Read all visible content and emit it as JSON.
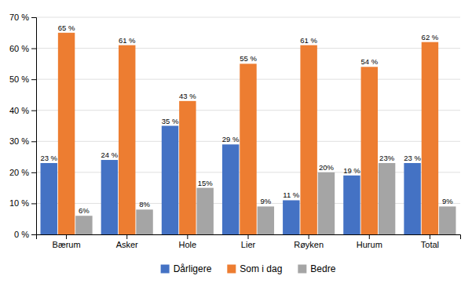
{
  "chart_data": {
    "type": "bar",
    "categories": [
      "Bærum",
      "Asker",
      "Hole",
      "Lier",
      "Røyken",
      "Hurum",
      "Total"
    ],
    "series": [
      {
        "name": "Dårligere",
        "color": "#4472C4",
        "values": [
          23,
          24,
          35,
          29,
          11,
          19,
          23
        ],
        "value_labels": [
          "23 %",
          "24 %",
          "35 %",
          "29 %",
          "11 %",
          "19 %",
          "23 %"
        ]
      },
      {
        "name": "Som i dag",
        "color": "#ED7D31",
        "values": [
          65,
          61,
          43,
          55,
          61,
          54,
          62
        ],
        "value_labels": [
          "65 %",
          "61 %",
          "43 %",
          "55 %",
          "61 %",
          "54 %",
          "62 %"
        ]
      },
      {
        "name": "Bedre",
        "color": "#A5A5A5",
        "values": [
          6,
          8,
          15,
          9,
          20,
          23,
          9
        ],
        "value_labels": [
          "6%",
          "8%",
          "15%",
          "9%",
          "20%",
          "23%",
          "9%"
        ]
      }
    ],
    "ylim": [
      0,
      70
    ],
    "yticks": [
      {
        "value": 0,
        "label": "0 %"
      },
      {
        "value": 10,
        "label": "10 %"
      },
      {
        "value": 20,
        "label": "20 %"
      },
      {
        "value": 30,
        "label": "30 %"
      },
      {
        "value": 40,
        "label": "40 %"
      },
      {
        "value": 50,
        "label": "50 %"
      },
      {
        "value": 60,
        "label": "60 %"
      },
      {
        "value": 70,
        "label": "70 %"
      }
    ],
    "grid": true,
    "legend": "bottom",
    "data_labels": true
  }
}
